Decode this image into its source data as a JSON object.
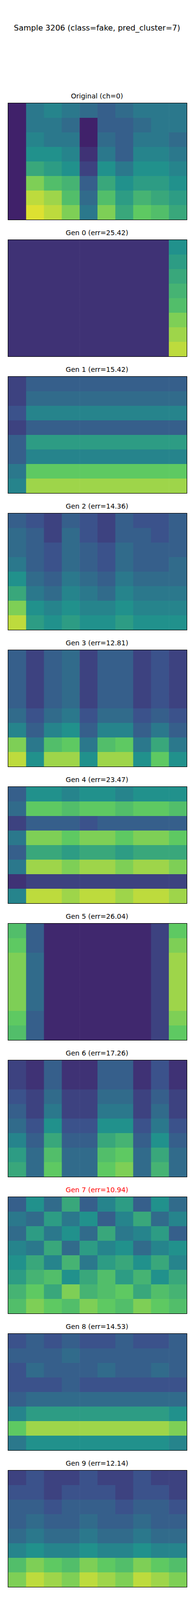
{
  "title": "Sample 3206 (class=fake, pred_cluster=7)",
  "color_range": [
    0,
    1
  ],
  "chart_data": [
    {
      "type": "heatmap",
      "title": "Original (ch=0)",
      "color": "black",
      "tick_labels": false,
      "cells": [
        [
          0.1,
          0.4,
          0.45,
          0.4,
          0.35,
          0.3,
          0.35,
          0.4,
          0.4,
          0.4
        ],
        [
          0.1,
          0.4,
          0.4,
          0.35,
          0.1,
          0.3,
          0.3,
          0.35,
          0.4,
          0.4
        ],
        [
          0.1,
          0.45,
          0.4,
          0.4,
          0.1,
          0.35,
          0.3,
          0.4,
          0.4,
          0.35
        ],
        [
          0.1,
          0.5,
          0.5,
          0.45,
          0.15,
          0.4,
          0.3,
          0.45,
          0.45,
          0.4
        ],
        [
          0.1,
          0.6,
          0.55,
          0.5,
          0.2,
          0.5,
          0.4,
          0.5,
          0.5,
          0.45
        ],
        [
          0.1,
          0.8,
          0.7,
          0.65,
          0.3,
          0.6,
          0.5,
          0.55,
          0.55,
          0.5
        ],
        [
          0.1,
          0.9,
          0.85,
          0.7,
          0.35,
          0.7,
          0.55,
          0.65,
          0.6,
          0.55
        ],
        [
          0.1,
          0.95,
          0.9,
          0.8,
          0.4,
          0.8,
          0.6,
          0.75,
          0.7,
          0.6
        ]
      ]
    },
    {
      "type": "heatmap",
      "title": "Gen 0 (err=25.42)",
      "color": "black",
      "tick_labels": false,
      "cells": [
        [
          0.15,
          0.15,
          0.15,
          0.15,
          0.15,
          0.15,
          0.15,
          0.15,
          0.15,
          0.5
        ],
        [
          0.15,
          0.15,
          0.15,
          0.15,
          0.15,
          0.15,
          0.15,
          0.15,
          0.15,
          0.55
        ],
        [
          0.15,
          0.15,
          0.15,
          0.15,
          0.15,
          0.15,
          0.15,
          0.15,
          0.15,
          0.6
        ],
        [
          0.15,
          0.15,
          0.15,
          0.15,
          0.15,
          0.15,
          0.15,
          0.15,
          0.15,
          0.65
        ],
        [
          0.15,
          0.15,
          0.15,
          0.15,
          0.15,
          0.15,
          0.15,
          0.15,
          0.15,
          0.7
        ],
        [
          0.15,
          0.15,
          0.15,
          0.15,
          0.15,
          0.15,
          0.15,
          0.15,
          0.15,
          0.8
        ],
        [
          0.15,
          0.15,
          0.15,
          0.15,
          0.15,
          0.15,
          0.15,
          0.15,
          0.15,
          0.85
        ],
        [
          0.15,
          0.15,
          0.15,
          0.15,
          0.15,
          0.15,
          0.15,
          0.15,
          0.15,
          0.9
        ]
      ]
    },
    {
      "type": "heatmap",
      "title": "Gen 1 (err=15.42)",
      "color": "black",
      "tick_labels": false,
      "cells": [
        [
          0.2,
          0.3,
          0.3,
          0.3,
          0.3,
          0.3,
          0.3,
          0.3,
          0.3,
          0.3
        ],
        [
          0.2,
          0.35,
          0.35,
          0.35,
          0.35,
          0.35,
          0.35,
          0.35,
          0.35,
          0.35
        ],
        [
          0.25,
          0.45,
          0.45,
          0.45,
          0.45,
          0.45,
          0.45,
          0.45,
          0.45,
          0.45
        ],
        [
          0.2,
          0.3,
          0.3,
          0.3,
          0.3,
          0.3,
          0.3,
          0.3,
          0.3,
          0.3
        ],
        [
          0.3,
          0.55,
          0.55,
          0.55,
          0.55,
          0.55,
          0.55,
          0.55,
          0.55,
          0.55
        ],
        [
          0.3,
          0.45,
          0.45,
          0.45,
          0.45,
          0.45,
          0.45,
          0.45,
          0.45,
          0.45
        ],
        [
          0.4,
          0.75,
          0.75,
          0.75,
          0.75,
          0.75,
          0.75,
          0.75,
          0.75,
          0.75
        ],
        [
          0.45,
          0.85,
          0.85,
          0.85,
          0.85,
          0.85,
          0.85,
          0.85,
          0.85,
          0.85
        ]
      ]
    },
    {
      "type": "heatmap",
      "title": "Gen 2 (err=14.36)",
      "color": "black",
      "tick_labels": false,
      "cells": [
        [
          0.3,
          0.25,
          0.2,
          0.3,
          0.25,
          0.2,
          0.3,
          0.25,
          0.25,
          0.3
        ],
        [
          0.35,
          0.3,
          0.2,
          0.35,
          0.25,
          0.2,
          0.3,
          0.3,
          0.25,
          0.3
        ],
        [
          0.35,
          0.3,
          0.25,
          0.35,
          0.3,
          0.25,
          0.35,
          0.3,
          0.3,
          0.3
        ],
        [
          0.4,
          0.3,
          0.25,
          0.35,
          0.3,
          0.25,
          0.35,
          0.3,
          0.3,
          0.35
        ],
        [
          0.5,
          0.35,
          0.3,
          0.4,
          0.35,
          0.3,
          0.4,
          0.35,
          0.35,
          0.35
        ],
        [
          0.6,
          0.4,
          0.35,
          0.45,
          0.4,
          0.35,
          0.45,
          0.4,
          0.4,
          0.4
        ],
        [
          0.8,
          0.5,
          0.45,
          0.5,
          0.45,
          0.45,
          0.5,
          0.45,
          0.45,
          0.45
        ],
        [
          0.9,
          0.55,
          0.5,
          0.55,
          0.5,
          0.5,
          0.55,
          0.5,
          0.5,
          0.5
        ]
      ]
    },
    {
      "type": "heatmap",
      "title": "Gen 3 (err=12.81)",
      "color": "black",
      "tick_labels": false,
      "cells": [
        [
          0.3,
          0.2,
          0.3,
          0.35,
          0.2,
          0.3,
          0.3,
          0.2,
          0.25,
          0.2
        ],
        [
          0.3,
          0.2,
          0.3,
          0.35,
          0.2,
          0.3,
          0.3,
          0.2,
          0.25,
          0.2
        ],
        [
          0.3,
          0.2,
          0.3,
          0.35,
          0.2,
          0.3,
          0.3,
          0.2,
          0.25,
          0.2
        ],
        [
          0.3,
          0.2,
          0.3,
          0.35,
          0.2,
          0.3,
          0.3,
          0.2,
          0.25,
          0.2
        ],
        [
          0.35,
          0.25,
          0.35,
          0.4,
          0.25,
          0.35,
          0.35,
          0.25,
          0.3,
          0.25
        ],
        [
          0.45,
          0.3,
          0.45,
          0.5,
          0.3,
          0.45,
          0.45,
          0.3,
          0.4,
          0.3
        ],
        [
          0.8,
          0.4,
          0.7,
          0.75,
          0.4,
          0.7,
          0.75,
          0.4,
          0.6,
          0.4
        ],
        [
          0.9,
          0.5,
          0.85,
          0.85,
          0.5,
          0.85,
          0.85,
          0.5,
          0.75,
          0.5
        ]
      ]
    },
    {
      "type": "heatmap",
      "title": "Gen 4 (err=23.47)",
      "color": "black",
      "tick_labels": false,
      "cells": [
        [
          0.3,
          0.5,
          0.5,
          0.45,
          0.5,
          0.5,
          0.45,
          0.5,
          0.5,
          0.5
        ],
        [
          0.35,
          0.75,
          0.75,
          0.7,
          0.75,
          0.75,
          0.7,
          0.75,
          0.75,
          0.7
        ],
        [
          0.2,
          0.3,
          0.3,
          0.3,
          0.25,
          0.3,
          0.3,
          0.3,
          0.3,
          0.3
        ],
        [
          0.4,
          0.8,
          0.8,
          0.75,
          0.8,
          0.8,
          0.75,
          0.8,
          0.8,
          0.75
        ],
        [
          0.3,
          0.6,
          0.6,
          0.55,
          0.6,
          0.6,
          0.55,
          0.6,
          0.6,
          0.6
        ],
        [
          0.4,
          0.85,
          0.85,
          0.8,
          0.85,
          0.85,
          0.8,
          0.85,
          0.85,
          0.8
        ],
        [
          0.15,
          0.2,
          0.2,
          0.2,
          0.2,
          0.2,
          0.2,
          0.2,
          0.2,
          0.2
        ],
        [
          0.45,
          0.9,
          0.9,
          0.85,
          0.9,
          0.9,
          0.85,
          0.9,
          0.9,
          0.85
        ]
      ]
    },
    {
      "type": "heatmap",
      "title": "Gen 5 (err=26.04)",
      "color": "black",
      "tick_labels": false,
      "cells": [
        [
          0.7,
          0.3,
          0.12,
          0.12,
          0.12,
          0.12,
          0.12,
          0.12,
          0.2,
          0.75
        ],
        [
          0.75,
          0.3,
          0.12,
          0.12,
          0.12,
          0.12,
          0.12,
          0.12,
          0.2,
          0.8
        ],
        [
          0.8,
          0.35,
          0.12,
          0.12,
          0.12,
          0.12,
          0.12,
          0.12,
          0.2,
          0.85
        ],
        [
          0.8,
          0.35,
          0.12,
          0.12,
          0.12,
          0.12,
          0.12,
          0.12,
          0.2,
          0.85
        ],
        [
          0.8,
          0.35,
          0.12,
          0.12,
          0.12,
          0.12,
          0.12,
          0.12,
          0.2,
          0.85
        ],
        [
          0.8,
          0.35,
          0.12,
          0.12,
          0.12,
          0.12,
          0.12,
          0.12,
          0.2,
          0.85
        ],
        [
          0.75,
          0.3,
          0.12,
          0.12,
          0.12,
          0.12,
          0.12,
          0.12,
          0.2,
          0.8
        ],
        [
          0.7,
          0.3,
          0.12,
          0.12,
          0.12,
          0.12,
          0.12,
          0.12,
          0.2,
          0.75
        ]
      ]
    },
    {
      "type": "heatmap",
      "title": "Gen 6 (err=17.26)",
      "color": "black",
      "tick_labels": false,
      "cells": [
        [
          0.2,
          0.15,
          0.3,
          0.15,
          0.15,
          0.3,
          0.3,
          0.15,
          0.25,
          0.15
        ],
        [
          0.2,
          0.15,
          0.3,
          0.15,
          0.15,
          0.3,
          0.3,
          0.15,
          0.25,
          0.15
        ],
        [
          0.25,
          0.2,
          0.35,
          0.2,
          0.2,
          0.35,
          0.35,
          0.2,
          0.3,
          0.2
        ],
        [
          0.3,
          0.2,
          0.4,
          0.2,
          0.2,
          0.4,
          0.4,
          0.2,
          0.35,
          0.2
        ],
        [
          0.35,
          0.25,
          0.5,
          0.25,
          0.25,
          0.5,
          0.5,
          0.25,
          0.4,
          0.25
        ],
        [
          0.45,
          0.3,
          0.6,
          0.3,
          0.3,
          0.6,
          0.65,
          0.3,
          0.5,
          0.3
        ],
        [
          0.55,
          0.35,
          0.7,
          0.35,
          0.35,
          0.7,
          0.75,
          0.35,
          0.6,
          0.35
        ],
        [
          0.6,
          0.35,
          0.75,
          0.35,
          0.35,
          0.75,
          0.8,
          0.35,
          0.65,
          0.35
        ]
      ]
    },
    {
      "type": "heatmap",
      "title": "Gen 7 (err=10.94)",
      "color": "red",
      "tick_labels": false,
      "cells": [
        [
          0.3,
          0.5,
          0.35,
          0.6,
          0.3,
          0.45,
          0.55,
          0.3,
          0.5,
          0.35
        ],
        [
          0.4,
          0.35,
          0.55,
          0.4,
          0.5,
          0.3,
          0.45,
          0.6,
          0.35,
          0.45
        ],
        [
          0.35,
          0.55,
          0.4,
          0.5,
          0.35,
          0.6,
          0.4,
          0.45,
          0.55,
          0.3
        ],
        [
          0.45,
          0.4,
          0.6,
          0.35,
          0.55,
          0.45,
          0.5,
          0.35,
          0.45,
          0.5
        ],
        [
          0.5,
          0.6,
          0.45,
          0.65,
          0.4,
          0.55,
          0.6,
          0.5,
          0.6,
          0.45
        ],
        [
          0.55,
          0.65,
          0.7,
          0.5,
          0.6,
          0.7,
          0.55,
          0.65,
          0.5,
          0.6
        ],
        [
          0.65,
          0.75,
          0.6,
          0.8,
          0.65,
          0.7,
          0.75,
          0.6,
          0.7,
          0.65
        ],
        [
          0.7,
          0.8,
          0.75,
          0.7,
          0.8,
          0.75,
          0.7,
          0.8,
          0.75,
          0.7
        ]
      ]
    },
    {
      "type": "heatmap",
      "title": "Gen 8 (err=14.53)",
      "color": "black",
      "tick_labels": false,
      "cells": [
        [
          0.25,
          0.3,
          0.25,
          0.3,
          0.25,
          0.25,
          0.3,
          0.25,
          0.25,
          0.3
        ],
        [
          0.3,
          0.3,
          0.3,
          0.35,
          0.3,
          0.3,
          0.3,
          0.3,
          0.3,
          0.3
        ],
        [
          0.25,
          0.35,
          0.3,
          0.3,
          0.3,
          0.35,
          0.3,
          0.3,
          0.35,
          0.3
        ],
        [
          0.25,
          0.25,
          0.25,
          0.3,
          0.25,
          0.25,
          0.25,
          0.25,
          0.25,
          0.25
        ],
        [
          0.3,
          0.35,
          0.35,
          0.35,
          0.35,
          0.35,
          0.35,
          0.35,
          0.35,
          0.35
        ],
        [
          0.45,
          0.55,
          0.55,
          0.55,
          0.55,
          0.55,
          0.55,
          0.55,
          0.55,
          0.5
        ],
        [
          0.75,
          0.85,
          0.85,
          0.85,
          0.85,
          0.85,
          0.85,
          0.85,
          0.85,
          0.8
        ],
        [
          0.4,
          0.5,
          0.5,
          0.5,
          0.5,
          0.5,
          0.5,
          0.5,
          0.5,
          0.45
        ]
      ]
    },
    {
      "type": "heatmap",
      "title": "Gen 9 (err=12.14)",
      "color": "black",
      "tick_labels": false,
      "cells": [
        [
          0.2,
          0.25,
          0.2,
          0.2,
          0.25,
          0.2,
          0.2,
          0.25,
          0.2,
          0.2
        ],
        [
          0.25,
          0.25,
          0.2,
          0.25,
          0.25,
          0.25,
          0.2,
          0.25,
          0.25,
          0.2
        ],
        [
          0.3,
          0.3,
          0.25,
          0.3,
          0.3,
          0.3,
          0.25,
          0.3,
          0.3,
          0.25
        ],
        [
          0.3,
          0.35,
          0.3,
          0.3,
          0.35,
          0.3,
          0.3,
          0.35,
          0.3,
          0.3
        ],
        [
          0.35,
          0.4,
          0.35,
          0.35,
          0.4,
          0.35,
          0.35,
          0.4,
          0.35,
          0.35
        ],
        [
          0.45,
          0.5,
          0.45,
          0.45,
          0.5,
          0.45,
          0.45,
          0.5,
          0.45,
          0.45
        ],
        [
          0.7,
          0.8,
          0.75,
          0.7,
          0.8,
          0.75,
          0.7,
          0.8,
          0.75,
          0.7
        ],
        [
          0.8,
          0.9,
          0.85,
          0.8,
          0.9,
          0.85,
          0.8,
          0.9,
          0.85,
          0.8
        ]
      ]
    }
  ]
}
